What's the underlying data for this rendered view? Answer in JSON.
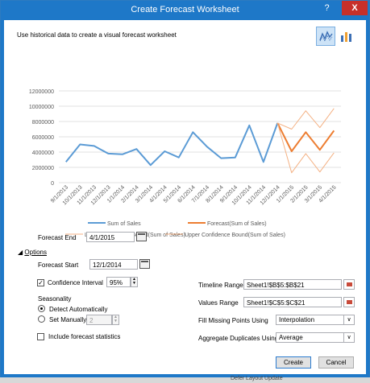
{
  "window": {
    "title": "Create Forecast Worksheet",
    "help_label": "?",
    "close_label": "X"
  },
  "intro_text": "Use historical data to create a visual forecast worksheet",
  "chart_type_buttons": [
    {
      "name": "line-chart-icon",
      "selected": true
    },
    {
      "name": "column-chart-icon",
      "selected": false
    }
  ],
  "chart_data": {
    "type": "line",
    "yticks": [
      "0",
      "2000000",
      "4000000",
      "6000000",
      "8000000",
      "10000000",
      "12000000"
    ],
    "ylim": [
      0,
      12000000
    ],
    "xticks": [
      "9/1/2013",
      "10/1/2013",
      "11/1/2013",
      "12/1/2013",
      "1/1/2014",
      "2/1/2014",
      "3/1/2014",
      "4/1/2014",
      "5/1/2014",
      "6/1/2014",
      "7/1/2014",
      "8/1/2014",
      "9/1/2014",
      "10/1/2014",
      "11/1/2014",
      "12/1/2014",
      "1/1/2015",
      "2/1/2015",
      "3/1/2015",
      "4/1/2015"
    ],
    "series": [
      {
        "name": "Sum of Sales",
        "color": "#5b9bd5",
        "start": 0,
        "values": [
          2700000,
          5000000,
          4800000,
          3800000,
          3700000,
          4400000,
          2300000,
          4100000,
          3300000,
          6600000,
          4700000,
          3200000,
          3300000,
          7500000,
          2700000,
          7800000
        ]
      },
      {
        "name": "Forecast(Sum of Sales)",
        "color": "#ed7d31",
        "start": 15,
        "values": [
          7800000,
          4100000,
          6600000,
          4300000,
          6800000
        ]
      },
      {
        "name": "Lower Confidence Bound(Sum of Sales)",
        "color": "#f4b183",
        "start": 15,
        "values": [
          7800000,
          1300000,
          3800000,
          1400000,
          3900000
        ]
      },
      {
        "name": "Upper Confidence Bound(Sum of Sales)",
        "color": "#f4b183",
        "start": 15,
        "values": [
          7800000,
          7000000,
          9400000,
          7200000,
          9700000
        ]
      }
    ],
    "legend_position": "bottom",
    "grid": true
  },
  "forecast_end": {
    "label": "Forecast End",
    "value": "4/1/2015"
  },
  "options": {
    "toggle_label": "Options",
    "forecast_start": {
      "label": "Forecast Start",
      "value": "12/1/2014"
    },
    "confidence_interval": {
      "label": "Confidence Interval",
      "checked": true,
      "value": "95%"
    },
    "seasonality": {
      "label": "Seasonality",
      "detect_label": "Detect Automatically",
      "manual_label": "Set Manually",
      "manual_value": "2",
      "selected": "detect"
    },
    "include_stats": {
      "label": "Include forecast statistics",
      "checked": false
    },
    "timeline_range": {
      "label": "Timeline Range",
      "value": "Sheet1!$B$5:$B$21"
    },
    "values_range": {
      "label": "Values Range",
      "value": "Sheet1!$C$5:$C$21"
    },
    "fill_missing": {
      "label": "Fill Missing Points Using",
      "value": "Interpolation"
    },
    "aggregate": {
      "label": "Aggregate Duplicates Using",
      "value": "Average"
    }
  },
  "buttons": {
    "create": "Create",
    "cancel": "Cancel"
  },
  "background_text": "Defer Layout Update"
}
